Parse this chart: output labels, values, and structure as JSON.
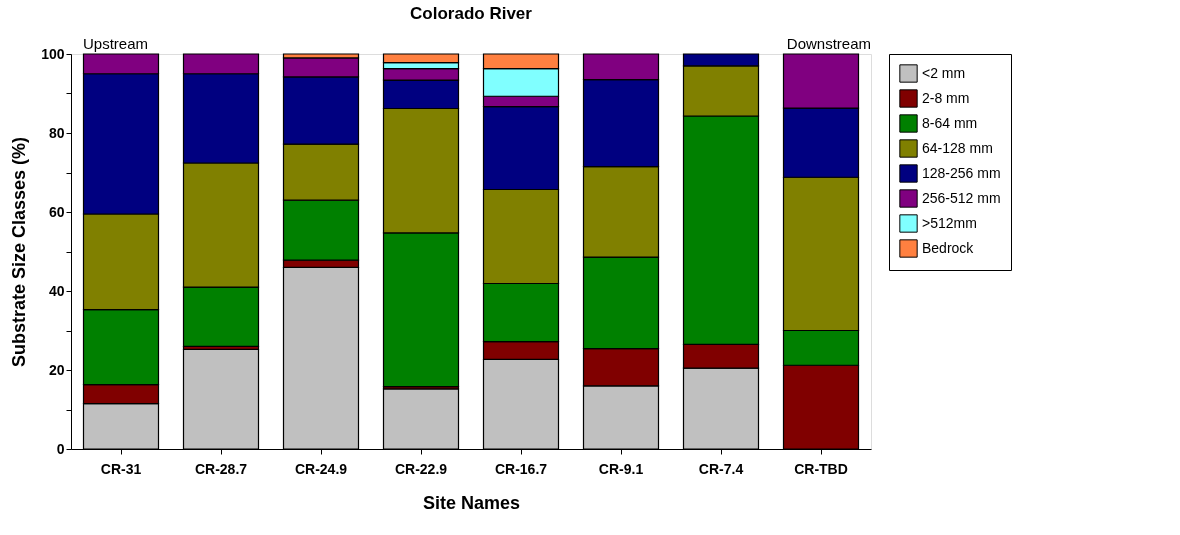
{
  "chart_data": {
    "type": "bar",
    "stacked": true,
    "title": "Colorado River",
    "xlabel": "Site Names",
    "ylabel": "Substrate Size Classes (%)",
    "categories": [
      "CR-31",
      "CR-28.7",
      "CR-24.9",
      "CR-22.9",
      "CR-16.7",
      "CR-9.1",
      "CR-7.4",
      "CR-TBD"
    ],
    "series": [
      {
        "name": "<2 mm",
        "color": "#c0c0c0",
        "values": [
          11.5,
          25.2,
          46,
          15.2,
          22.7,
          16,
          20.5,
          0
        ]
      },
      {
        "name": "2-8 mm",
        "color": "#800000",
        "values": [
          4.8,
          0.8,
          1.8,
          0.6,
          4.5,
          9.4,
          6,
          21.2
        ]
      },
      {
        "name": "8-64 mm",
        "color": "#008000",
        "values": [
          19,
          15,
          15.2,
          38.9,
          14.7,
          23.2,
          57.8,
          8.8
        ]
      },
      {
        "name": "64-128 mm",
        "color": "#808000",
        "values": [
          24.2,
          31.4,
          14.2,
          31.5,
          23.8,
          22.9,
          12.7,
          38.8
        ]
      },
      {
        "name": "128-256 mm",
        "color": "#000080",
        "values": [
          35.5,
          22.6,
          17,
          7.2,
          21,
          22,
          3,
          17.5
        ]
      },
      {
        "name": "256-512 mm",
        "color": "#800080",
        "values": [
          5,
          5,
          4.8,
          2.9,
          2.6,
          6.5,
          0,
          13.7
        ]
      },
      {
        "name": ">512mm",
        "color": "#80ffff",
        "values": [
          0,
          0,
          0,
          1.5,
          7,
          0,
          0,
          0
        ]
      },
      {
        "name": "Bedrock",
        "color": "#ff8040",
        "values": [
          0,
          0,
          1,
          2.2,
          3.7,
          0,
          0,
          0
        ]
      }
    ],
    "ylim": [
      0,
      100
    ],
    "yticks": [
      0,
      {
        "value": 10,
        "label": null
      },
      20,
      {
        "value": 30,
        "label": null
      },
      40,
      {
        "value": 50,
        "label": null
      },
      60,
      {
        "value": 70,
        "label": null
      },
      80,
      {
        "value": 90,
        "label": null
      },
      100
    ],
    "annotations": [
      "Upstream",
      "Downstream"
    ],
    "grid": false,
    "legend": "right"
  }
}
